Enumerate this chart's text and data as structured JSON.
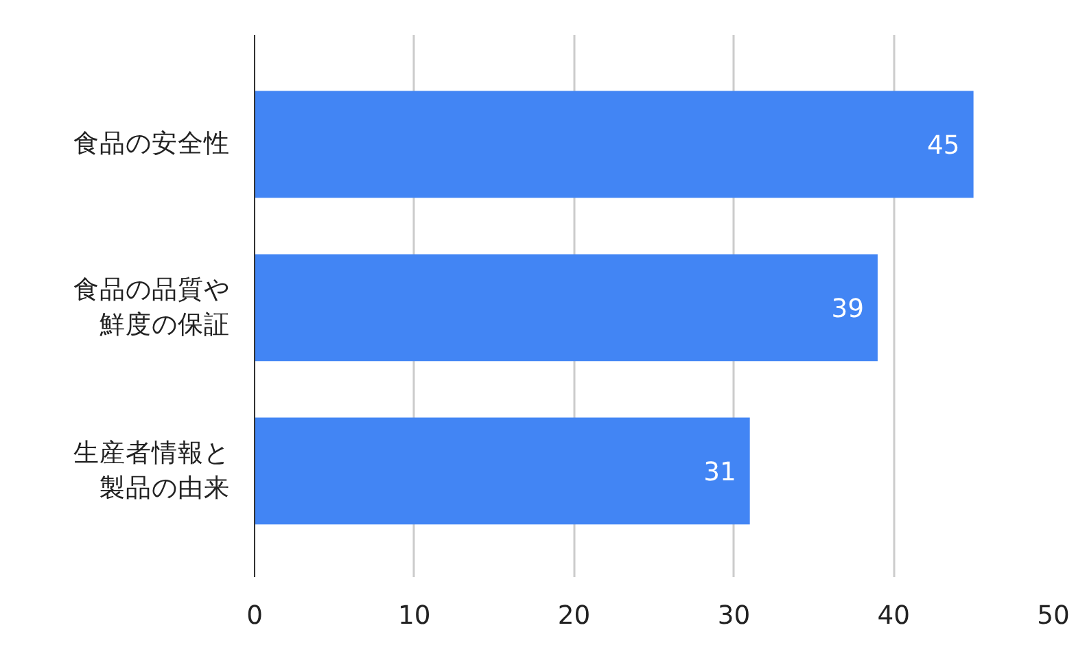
{
  "chart_data": {
    "type": "bar",
    "orientation": "horizontal",
    "categories": [
      "食品の安全性",
      "食品の品質や鮮度の保証",
      "生産者情報と製品の由来"
    ],
    "values": [
      45,
      39,
      31
    ],
    "color": "#4285f4",
    "xlim": [
      0,
      50
    ],
    "xticks": [
      0,
      10,
      20,
      30,
      40,
      50
    ],
    "grid": "x",
    "data_labels": true
  }
}
